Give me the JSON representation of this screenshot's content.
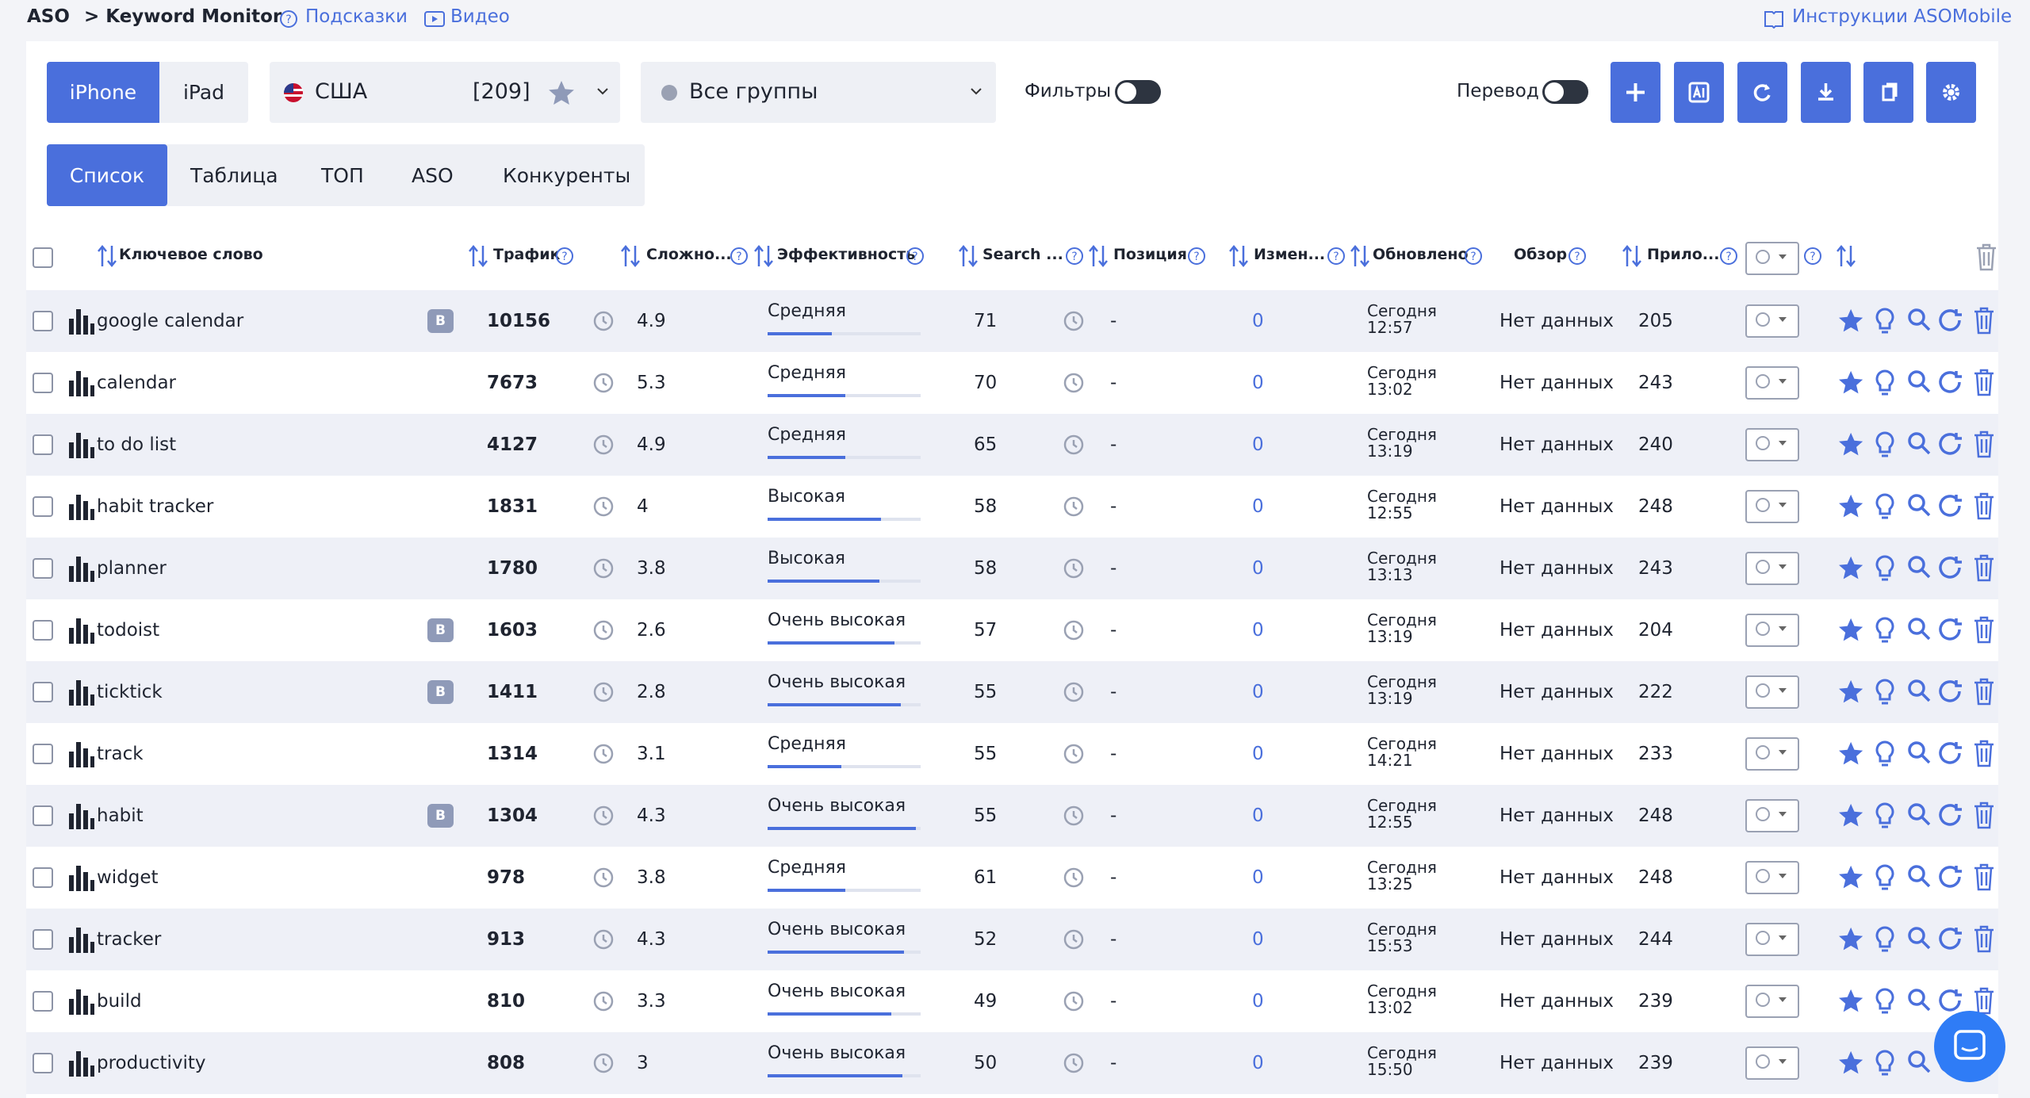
{
  "header": {
    "breadcrumb_root": "ASO",
    "breadcrumb_page": "> Keyword Monitor",
    "hints": "Подсказки",
    "video": "Видео",
    "instructions": "Инструкции ASOMobile"
  },
  "toolbar": {
    "devices": [
      "iPhone",
      "iPad"
    ],
    "country": "США",
    "keyword_count": "[209]",
    "group": "Все группы",
    "filters": "Фильтры",
    "translate": "Перевод"
  },
  "tabs": [
    "Список",
    "Таблица",
    "ТОП",
    "ASO",
    "Конкуренты"
  ],
  "table": {
    "columns": [
      "Ключевое слово",
      "Трафик",
      "Сложно...",
      "Эффективность",
      "Search ...",
      "Позиция",
      "Измен...",
      "Обновлено",
      "Обзор",
      "Прило..."
    ],
    "rows": [
      {
        "keyword": "google calendar",
        "badge": "B",
        "traffic": 10156,
        "difficulty": 4.9,
        "efficiency": "Средняя",
        "efficiency_bar": 42,
        "search": 71,
        "position": "-",
        "change": 0,
        "updated_day": "Сегодня",
        "updated_time": "12:57",
        "review": "Нет данных",
        "apps": 205
      },
      {
        "keyword": "calendar",
        "traffic": 7673,
        "difficulty": 5.3,
        "efficiency": "Средняя",
        "efficiency_bar": 51,
        "search": 70,
        "position": "-",
        "change": 0,
        "updated_day": "Сегодня",
        "updated_time": "13:02",
        "review": "Нет данных",
        "apps": 243
      },
      {
        "keyword": "to do list",
        "traffic": 4127,
        "difficulty": 4.9,
        "efficiency": "Средняя",
        "efficiency_bar": 51,
        "search": 65,
        "position": "-",
        "change": 0,
        "updated_day": "Сегодня",
        "updated_time": "13:19",
        "review": "Нет данных",
        "apps": 240
      },
      {
        "keyword": "habit tracker",
        "traffic": 1831,
        "difficulty": 4,
        "efficiency": "Высокая",
        "efficiency_bar": 74,
        "search": 58,
        "position": "-",
        "change": 0,
        "updated_day": "Сегодня",
        "updated_time": "12:55",
        "review": "Нет данных",
        "apps": 248
      },
      {
        "keyword": "planner",
        "traffic": 1780,
        "difficulty": 3.8,
        "efficiency": "Высокая",
        "efficiency_bar": 73,
        "search": 58,
        "position": "-",
        "change": 0,
        "updated_day": "Сегодня",
        "updated_time": "13:13",
        "review": "Нет данных",
        "apps": 243
      },
      {
        "keyword": "todoist",
        "badge": "B",
        "traffic": 1603,
        "difficulty": 2.6,
        "efficiency": "Очень высокая",
        "efficiency_bar": 83,
        "search": 57,
        "position": "-",
        "change": 0,
        "updated_day": "Сегодня",
        "updated_time": "13:19",
        "review": "Нет данных",
        "apps": 204
      },
      {
        "keyword": "ticktick",
        "badge": "B",
        "traffic": 1411,
        "difficulty": 2.8,
        "efficiency": "Очень высокая",
        "efficiency_bar": 87,
        "search": 55,
        "position": "-",
        "change": 0,
        "updated_day": "Сегодня",
        "updated_time": "13:19",
        "review": "Нет данных",
        "apps": 222
      },
      {
        "keyword": "track",
        "traffic": 1314,
        "difficulty": 3.1,
        "efficiency": "Средняя",
        "efficiency_bar": 48,
        "search": 55,
        "position": "-",
        "change": 0,
        "updated_day": "Сегодня",
        "updated_time": "14:21",
        "review": "Нет данных",
        "apps": 233
      },
      {
        "keyword": "habit",
        "badge": "B",
        "traffic": 1304,
        "difficulty": 4.3,
        "efficiency": "Очень высокая",
        "efficiency_bar": 97,
        "search": 55,
        "position": "-",
        "change": 0,
        "updated_day": "Сегодня",
        "updated_time": "12:55",
        "review": "Нет данных",
        "apps": 248
      },
      {
        "keyword": "widget",
        "traffic": 978,
        "difficulty": 3.8,
        "efficiency": "Средняя",
        "efficiency_bar": 51,
        "search": 61,
        "position": "-",
        "change": 0,
        "updated_day": "Сегодня",
        "updated_time": "13:25",
        "review": "Нет данных",
        "apps": 248
      },
      {
        "keyword": "tracker",
        "traffic": 913,
        "difficulty": 4.3,
        "efficiency": "Очень высокая",
        "efficiency_bar": 89,
        "search": 52,
        "position": "-",
        "change": 0,
        "updated_day": "Сегодня",
        "updated_time": "15:53",
        "review": "Нет данных",
        "apps": 244
      },
      {
        "keyword": "build",
        "traffic": 810,
        "difficulty": 3.3,
        "efficiency": "Очень высокая",
        "efficiency_bar": 81,
        "search": 49,
        "position": "-",
        "change": 0,
        "updated_day": "Сегодня",
        "updated_time": "13:02",
        "review": "Нет данных",
        "apps": 239
      },
      {
        "keyword": "productivity",
        "traffic": 808,
        "difficulty": 3,
        "efficiency": "Очень высокая",
        "efficiency_bar": 88,
        "search": 50,
        "position": "-",
        "change": 0,
        "updated_day": "Сегодня",
        "updated_time": "15:50",
        "review": "Нет данных",
        "apps": 239
      }
    ]
  }
}
